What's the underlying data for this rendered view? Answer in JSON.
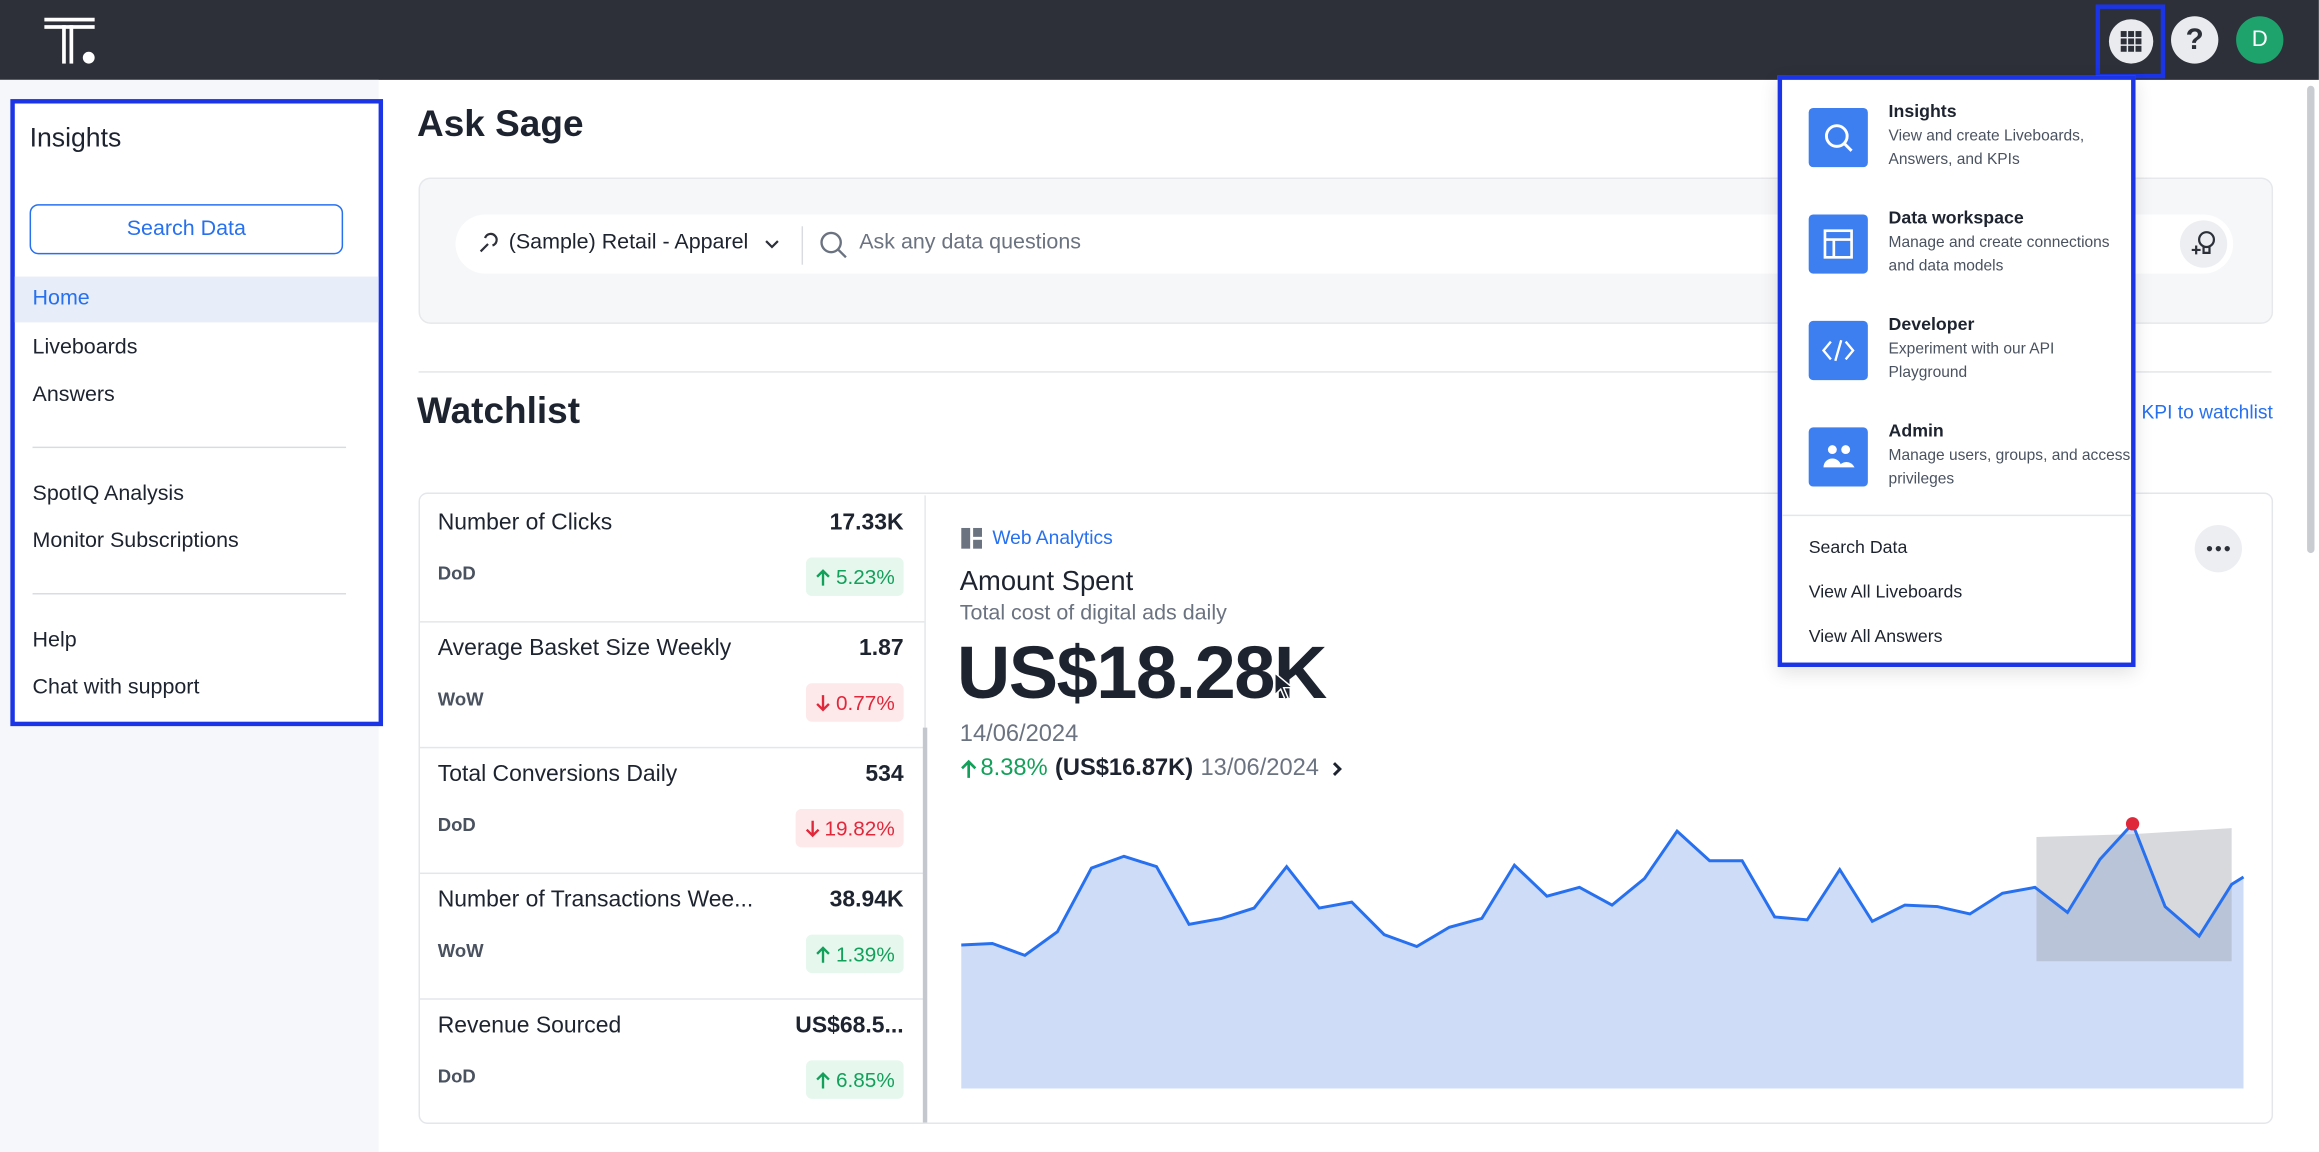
{
  "header": {
    "avatar": "D",
    "help": "?"
  },
  "sidebar": {
    "title": "Insights",
    "button": "Search Data",
    "groups": [
      [
        "Home",
        "Liveboards",
        "Answers"
      ],
      [
        "SpotIQ Analysis",
        "Monitor Subscriptions"
      ],
      [
        "Help",
        "Chat with support"
      ]
    ]
  },
  "main": {
    "title": "Ask Sage",
    "search": {
      "source": "(Sample) Retail - Apparel",
      "placeholder": "Ask any data questions"
    },
    "watchlist": {
      "title": "Watchlist",
      "link": "KPI to watchlist",
      "kpis": [
        {
          "name": "Number of Clicks",
          "value": "17.33K",
          "period": "DoD",
          "change": "5.23%",
          "direction": "up"
        },
        {
          "name": "Average Basket Size Weekly",
          "value": "1.87",
          "period": "WoW",
          "change": "0.77%",
          "direction": "down"
        },
        {
          "name": "Total Conversions Daily",
          "value": "534",
          "period": "DoD",
          "change": "19.82%",
          "direction": "down"
        },
        {
          "name": "Number of Transactions Wee...",
          "value": "38.94K",
          "period": "WoW",
          "change": "1.39%",
          "direction": "up"
        },
        {
          "name": "Revenue Sourced",
          "value": "US$68.5...",
          "period": "DoD",
          "change": "6.85%",
          "direction": "up"
        }
      ],
      "detail": {
        "source": "Web Analytics",
        "title": "Amount Spent",
        "subtitle": "Total cost of digital ads daily",
        "value": "US$18.28K",
        "date": "14/06/2024",
        "change": "8.38%",
        "previous": "(US$16.87K)",
        "previous_date": "13/06/2024"
      }
    }
  },
  "menu": {
    "apps": [
      {
        "title": "Insights",
        "description": "View and create Liveboards, Answers, and KPIs"
      },
      {
        "title": "Data workspace",
        "description": "Manage and create connections and data models"
      },
      {
        "title": "Developer",
        "description": "Experiment with our API Playground"
      },
      {
        "title": "Admin",
        "description": "Manage users, groups, and access privileges"
      }
    ],
    "links": [
      "Search Data",
      "View All Liveboards",
      "View All Answers"
    ]
  }
}
